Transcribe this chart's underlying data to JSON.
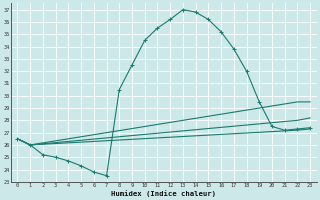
{
  "title": "",
  "xlabel": "Humidex (Indice chaleur)",
  "ylabel": "",
  "bg_color": "#cce8e8",
  "line_color": "#1a7a6e",
  "grid_color": "#ffffff",
  "xlim": [
    -0.5,
    23.5
  ],
  "ylim": [
    23,
    37.5
  ],
  "xticks": [
    0,
    1,
    2,
    3,
    4,
    5,
    6,
    7,
    8,
    9,
    10,
    11,
    12,
    13,
    14,
    15,
    16,
    17,
    18,
    19,
    20,
    21,
    22,
    23
  ],
  "yticks": [
    23,
    24,
    25,
    26,
    27,
    28,
    29,
    30,
    31,
    32,
    33,
    34,
    35,
    36,
    37
  ],
  "curve1_x": [
    0,
    1,
    2,
    3,
    4,
    5,
    6,
    7,
    8,
    9,
    10,
    11,
    12,
    13,
    14,
    15,
    16,
    17,
    18,
    19,
    20,
    21,
    22,
    23
  ],
  "curve1_y": [
    26.5,
    26.0,
    25.2,
    25.0,
    24.7,
    24.3,
    23.8,
    23.5,
    30.5,
    32.5,
    34.5,
    35.5,
    36.2,
    37.0,
    36.8,
    36.2,
    35.2,
    33.8,
    32.0,
    29.5,
    27.5,
    27.2,
    27.3,
    27.4
  ],
  "curve2_x": [
    0,
    1,
    22,
    23
  ],
  "curve2_y": [
    26.5,
    26.0,
    29.5,
    29.5
  ],
  "curve3_x": [
    0,
    1,
    22,
    23
  ],
  "curve3_y": [
    26.5,
    26.0,
    28.0,
    28.2
  ],
  "curve4_x": [
    0,
    1,
    22,
    23
  ],
  "curve4_y": [
    26.5,
    26.0,
    27.2,
    27.3
  ]
}
